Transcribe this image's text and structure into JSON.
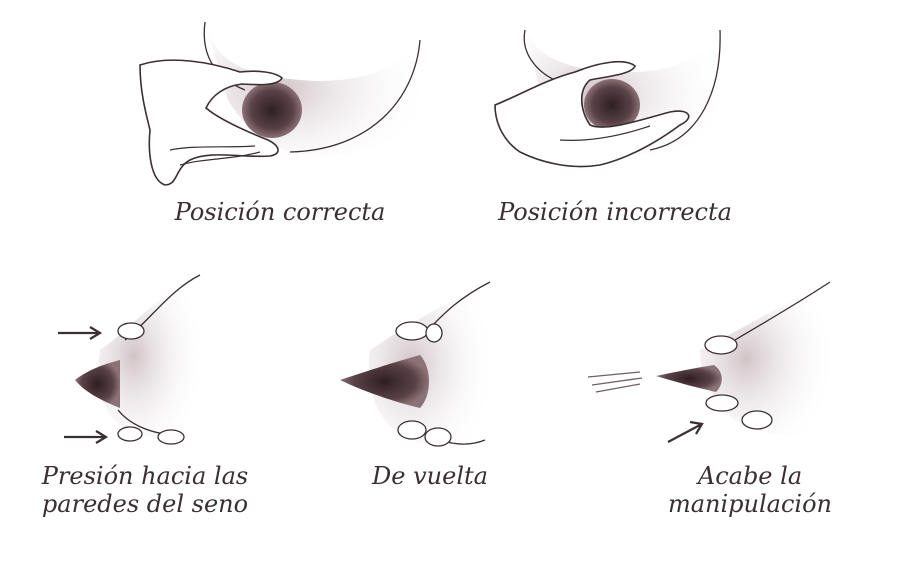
{
  "panels": {
    "correct": {
      "caption": "Posición correcta"
    },
    "incorrect": {
      "caption": "Posición incorrecta"
    },
    "step1": {
      "caption_line1": "Presión hacia las",
      "caption_line2": "paredes del seno"
    },
    "step2": {
      "caption": "De vuelta"
    },
    "step3": {
      "caption_line1": "Acabe la",
      "caption_line2": "manipulación"
    }
  },
  "colors": {
    "ink": "#3a2f33",
    "shade": "#b7a6ab",
    "areola": "#4a3438",
    "background": "#ffffff"
  }
}
